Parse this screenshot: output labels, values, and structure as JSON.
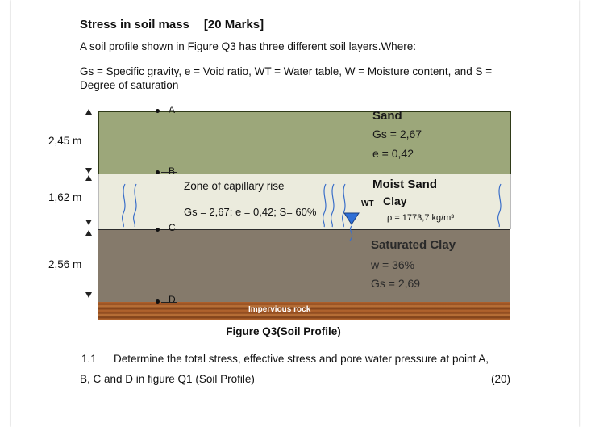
{
  "header": {
    "title": "Stress in soil mass",
    "marks": "[20 Marks]"
  },
  "intro": "A soil profile shown in Figure Q3 has three different soil layers.Where:",
  "definitions": "Gs = Specific gravity, e = Void ratio, WT = Water table, W = Moisture content, and S = Degree of saturation",
  "figure": {
    "points": [
      "A",
      "B",
      "C",
      "D"
    ],
    "dimensions": [
      "2,45 m",
      "1,62 m",
      "2,56 m"
    ],
    "sand": {
      "name": "Sand",
      "gs": "Gs = 2,67",
      "e": "e = 0,42"
    },
    "moist": {
      "name": "Moist Sand",
      "wt": "WT",
      "clay": "Clay",
      "rho": "ρ = 1773,7 kg/m³",
      "zone": "Zone of capillary rise",
      "props": "Gs = 2,67; e = 0,42; S= 60%"
    },
    "clay": {
      "name": "Saturated Clay",
      "w": "w = 36%",
      "gs": "Gs = 2,69"
    },
    "rock": "Impervious rock",
    "caption": "Figure Q3(Soil Profile)",
    "colors": {
      "sand": "#9ca77a",
      "moist": "#ebebdd",
      "clay": "#857a6b",
      "rock": "#b3632c",
      "water_table": "#2f6fd6"
    }
  },
  "question": {
    "number": "1.1",
    "line1": "Determine the total stress, effective stress and pore water pressure at point A,",
    "line2": "B, C and D in figure Q1 (Soil Profile)",
    "marks": "(20)"
  }
}
